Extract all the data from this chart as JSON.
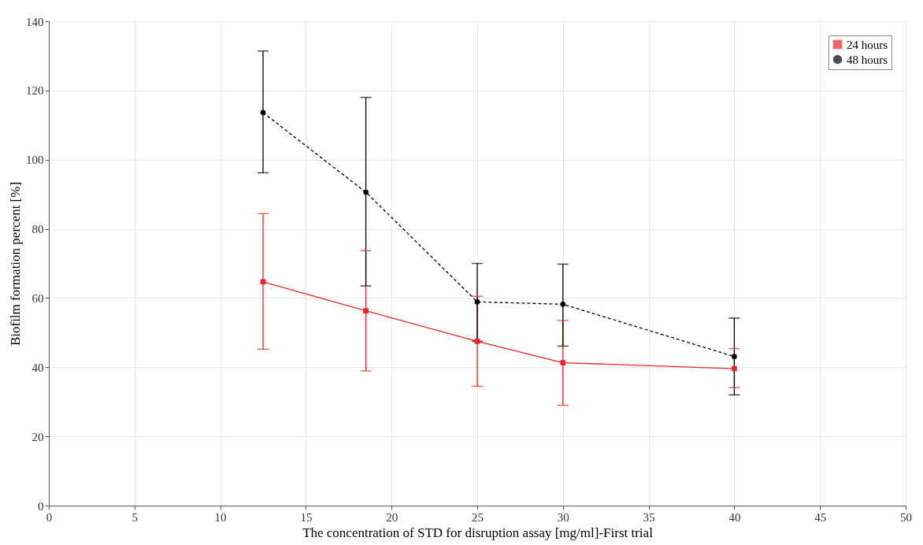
{
  "chart_data": {
    "type": "line",
    "xlabel": "The concentration of STD for disruption assay [mg/ml]-First trial",
    "ylabel": "Biofilm formation percent [%]",
    "x": [
      12.5,
      18.5,
      25,
      30,
      40
    ],
    "series": [
      {
        "name": "24 hours",
        "color": "#e8262a",
        "marker": "square",
        "line_style": "solid",
        "values": [
          64.7,
          56.3,
          47.5,
          41.3,
          39.6
        ],
        "errors": [
          [
            45.2,
            84.4
          ],
          [
            38.9,
            73.7
          ],
          [
            34.5,
            60.5
          ],
          [
            29.0,
            53.5
          ],
          [
            34.1,
            45.4
          ]
        ]
      },
      {
        "name": "48 hours",
        "color": "#000000",
        "marker": "circle",
        "line_style": "dashed",
        "values": [
          113.6,
          90.6,
          58.9,
          58.2,
          43.1
        ],
        "errors": [
          [
            96.2,
            131.4
          ],
          [
            63.5,
            118.0
          ],
          [
            47.5,
            70.0
          ],
          [
            46.1,
            69.8
          ],
          [
            32.0,
            54.2
          ]
        ]
      }
    ],
    "xlim": [
      0,
      50
    ],
    "xticks": [
      0,
      5,
      10,
      15,
      20,
      25,
      30,
      35,
      40,
      45,
      50
    ],
    "ylim": [
      0,
      140
    ],
    "yticks": [
      0,
      20,
      40,
      60,
      80,
      100,
      120,
      140
    ],
    "grid": true,
    "legend": "top right"
  }
}
